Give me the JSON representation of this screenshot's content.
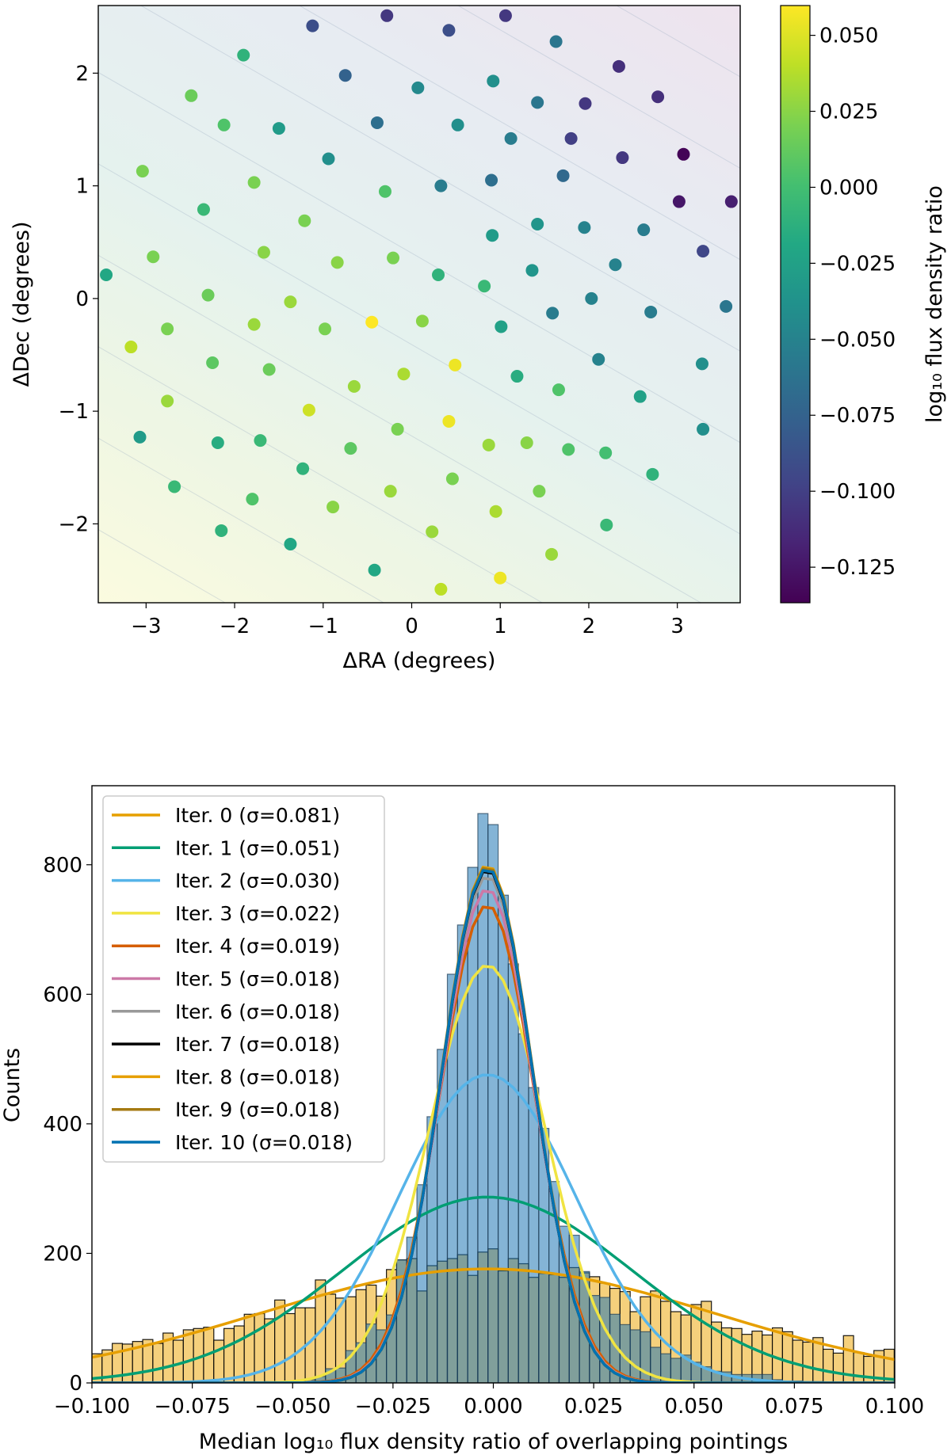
{
  "chart_data": [
    {
      "type": "scatter",
      "xlabel": "ΔRA (degrees)",
      "ylabel": "ΔDec (degrees)",
      "xlim": [
        -3.54,
        3.71
      ],
      "ylim": [
        -2.7,
        2.6
      ],
      "xticks": [
        -3,
        -2,
        -1,
        0,
        1,
        2,
        3
      ],
      "xtick_labels": [
        "−3",
        "−2",
        "−1",
        "0",
        "1",
        "2",
        "3"
      ],
      "yticks": [
        -2,
        -1,
        0,
        1,
        2
      ],
      "ytick_labels": [
        "−2",
        "−1",
        "0",
        "1",
        "2"
      ],
      "background": "planar fit, filled contours",
      "colorbar": {
        "label": "log₁₀ flux density ratio",
        "colormap": "viridis",
        "range": [
          -0.1367,
          0.0598
        ],
        "ticks": [
          0.05,
          0.025,
          0.0,
          -0.025,
          -0.05,
          -0.075,
          -0.1,
          -0.125
        ],
        "tick_labels": [
          "0.050",
          "0.025",
          "0.000",
          "−0.025",
          "−0.050",
          "−0.075",
          "−0.100",
          "−0.125"
        ]
      },
      "points": [
        [
          -1.12,
          2.42,
          -0.09
        ],
        [
          -0.28,
          2.51,
          -0.105
        ],
        [
          1.06,
          2.51,
          -0.105
        ],
        [
          0.42,
          2.38,
          -0.09
        ],
        [
          1.63,
          2.28,
          -0.06
        ],
        [
          2.34,
          2.06,
          -0.11
        ],
        [
          -1.9,
          2.16,
          -0.01
        ],
        [
          -0.75,
          1.98,
          -0.075
        ],
        [
          0.07,
          1.87,
          -0.045
        ],
        [
          0.92,
          1.93,
          -0.04
        ],
        [
          2.78,
          1.79,
          -0.11
        ],
        [
          -2.49,
          1.8,
          0.015
        ],
        [
          1.42,
          1.74,
          -0.06
        ],
        [
          1.96,
          1.73,
          -0.105
        ],
        [
          -2.12,
          1.54,
          0.005
        ],
        [
          -1.5,
          1.51,
          -0.03
        ],
        [
          -0.39,
          1.56,
          -0.065
        ],
        [
          0.52,
          1.54,
          -0.04
        ],
        [
          1.12,
          1.42,
          -0.055
        ],
        [
          1.8,
          1.42,
          -0.1
        ],
        [
          2.38,
          1.25,
          -0.105
        ],
        [
          3.07,
          1.28,
          -0.135
        ],
        [
          -0.94,
          1.24,
          -0.04
        ],
        [
          -3.04,
          1.13,
          0.02
        ],
        [
          -1.78,
          1.03,
          0.02
        ],
        [
          -0.3,
          0.95,
          0.005
        ],
        [
          0.33,
          1.0,
          -0.055
        ],
        [
          0.9,
          1.05,
          -0.065
        ],
        [
          1.71,
          1.09,
          -0.07
        ],
        [
          3.02,
          0.86,
          -0.125
        ],
        [
          3.61,
          0.86,
          -0.12
        ],
        [
          -2.35,
          0.79,
          -0.005
        ],
        [
          -1.21,
          0.69,
          0.02
        ],
        [
          0.91,
          0.56,
          -0.03
        ],
        [
          1.42,
          0.66,
          -0.035
        ],
        [
          1.95,
          0.63,
          -0.05
        ],
        [
          2.62,
          0.61,
          -0.055
        ],
        [
          -2.92,
          0.37,
          0.02
        ],
        [
          -1.67,
          0.41,
          0.025
        ],
        [
          -0.84,
          0.32,
          0.025
        ],
        [
          -0.21,
          0.36,
          0.02
        ],
        [
          3.29,
          0.42,
          -0.095
        ],
        [
          -3.45,
          0.21,
          -0.02
        ],
        [
          0.3,
          0.21,
          -0.01
        ],
        [
          0.82,
          0.11,
          -0.005
        ],
        [
          1.36,
          0.25,
          -0.035
        ],
        [
          2.3,
          0.3,
          -0.05
        ],
        [
          -2.3,
          0.03,
          0.015
        ],
        [
          -1.37,
          -0.03,
          0.03
        ],
        [
          2.03,
          0.0,
          -0.05
        ],
        [
          3.55,
          -0.07,
          -0.06
        ],
        [
          -0.45,
          -0.21,
          0.06
        ],
        [
          0.12,
          -0.2,
          0.025
        ],
        [
          1.59,
          -0.13,
          -0.055
        ],
        [
          2.7,
          -0.12,
          -0.055
        ],
        [
          -2.76,
          -0.27,
          0.02
        ],
        [
          -1.78,
          -0.23,
          0.03
        ],
        [
          -0.98,
          -0.27,
          0.02
        ],
        [
          1.01,
          -0.25,
          -0.025
        ],
        [
          -3.17,
          -0.43,
          0.04
        ],
        [
          -2.25,
          -0.57,
          0.01
        ],
        [
          -1.61,
          -0.63,
          0.015
        ],
        [
          0.49,
          -0.59,
          0.055
        ],
        [
          -0.09,
          -0.67,
          0.035
        ],
        [
          1.19,
          -0.69,
          -0.015
        ],
        [
          2.11,
          -0.54,
          -0.05
        ],
        [
          3.28,
          -0.58,
          -0.04
        ],
        [
          -0.65,
          -0.78,
          0.03
        ],
        [
          1.66,
          -0.81,
          0.005
        ],
        [
          2.58,
          -0.87,
          -0.025
        ],
        [
          -2.76,
          -0.91,
          0.03
        ],
        [
          -1.16,
          -0.99,
          0.045
        ],
        [
          0.42,
          -1.09,
          0.055
        ],
        [
          -0.16,
          -1.16,
          0.02
        ],
        [
          3.29,
          -1.16,
          -0.04
        ],
        [
          -3.07,
          -1.23,
          -0.03
        ],
        [
          -2.19,
          -1.28,
          -0.015
        ],
        [
          -1.71,
          -1.26,
          -0.005
        ],
        [
          -0.69,
          -1.33,
          0.01
        ],
        [
          0.87,
          -1.3,
          0.03
        ],
        [
          1.3,
          -1.28,
          0.025
        ],
        [
          1.77,
          -1.34,
          0.005
        ],
        [
          2.19,
          -1.37,
          0.0
        ],
        [
          -1.23,
          -1.51,
          -0.01
        ],
        [
          0.46,
          -1.6,
          0.02
        ],
        [
          2.72,
          -1.56,
          -0.01
        ],
        [
          -2.68,
          -1.67,
          -0.005
        ],
        [
          -1.8,
          -1.78,
          0.005
        ],
        [
          -0.24,
          -1.71,
          0.03
        ],
        [
          -0.89,
          -1.85,
          0.025
        ],
        [
          1.44,
          -1.71,
          0.02
        ],
        [
          0.95,
          -1.89,
          0.035
        ],
        [
          -2.15,
          -2.06,
          -0.01
        ],
        [
          0.23,
          -2.07,
          0.03
        ],
        [
          2.2,
          -2.01,
          -0.005
        ],
        [
          -1.37,
          -2.18,
          -0.02
        ],
        [
          1.58,
          -2.27,
          0.03
        ],
        [
          -0.42,
          -2.41,
          -0.02
        ],
        [
          1.0,
          -2.48,
          0.055
        ],
        [
          0.33,
          -2.58,
          0.04
        ]
      ]
    },
    {
      "type": "histogram",
      "xlabel": "Median log₁₀ flux density ratio of overlapping pointings",
      "ylabel": "Counts",
      "xlim": [
        -0.1,
        0.1
      ],
      "ylim": [
        0,
        922
      ],
      "xticks": [
        -0.1,
        -0.075,
        -0.05,
        -0.025,
        0,
        0.025,
        0.05,
        0.075,
        0.1
      ],
      "xtick_labels": [
        "−0.100",
        "−0.075",
        "−0.050",
        "−0.025",
        "0.000",
        "0.025",
        "0.050",
        "0.075",
        "0.100"
      ],
      "yticks": [
        0,
        200,
        400,
        600,
        800
      ],
      "ytick_labels": [
        "0",
        "200",
        "400",
        "600",
        "800"
      ],
      "bin_start": -0.1,
      "bin_width": 0.00253,
      "histograms": [
        {
          "color": "#f5d07c",
          "counts": [
            45,
            51,
            61,
            60,
            64,
            67,
            61,
            77,
            66,
            82,
            84,
            86,
            66,
            84,
            88,
            106,
            107,
            99,
            128,
            107,
            116,
            116,
            159,
            137,
            131,
            133,
            144,
            151,
            134,
            175,
            190,
            192,
            142,
            181,
            188,
            192,
            198,
            166,
            202,
            207,
            173,
            192,
            184,
            163,
            169,
            167,
            163,
            178,
            170,
            164,
            154,
            146,
            141,
            110,
            133,
            142,
            126,
            110,
            105,
            121,
            126,
            94,
            85,
            84,
            75,
            80,
            74,
            85,
            79,
            66,
            63,
            70,
            52,
            46,
            73,
            47,
            41,
            50,
            52
          ]
        },
        {
          "color": "#1f77b4",
          "counts": [
            0,
            0,
            0,
            0,
            0,
            0,
            0,
            0,
            0,
            0,
            0,
            0,
            0,
            0,
            0,
            1,
            1,
            2,
            2,
            3,
            3,
            5,
            10,
            22,
            23,
            50,
            62,
            91,
            82,
            105,
            190,
            225,
            306,
            411,
            515,
            631,
            707,
            796,
            879,
            862,
            753,
            647,
            539,
            456,
            393,
            311,
            242,
            228,
            172,
            135,
            132,
            106,
            90,
            82,
            79,
            55,
            45,
            38,
            43,
            32,
            25,
            18,
            17,
            13,
            13,
            13,
            13,
            5,
            3,
            3,
            2,
            2,
            1,
            1,
            1,
            1,
            0,
            0,
            0
          ]
        }
      ],
      "legend_position": "upper-left",
      "series": [
        {
          "name": "Iter. 0 (σ=0.081)",
          "color": "#e69f00",
          "peak": 176,
          "center": -0.0015,
          "width": 0.057
        },
        {
          "name": "Iter. 1 (σ=0.051)",
          "color": "#009e73",
          "peak": 287,
          "center": -0.0015,
          "width": 0.036
        },
        {
          "name": "Iter. 2 (σ=0.030)",
          "color": "#56b4e9",
          "peak": 476,
          "center": -0.0015,
          "width": 0.022
        },
        {
          "name": "Iter. 3 (σ=0.022)",
          "color": "#f0e442",
          "peak": 645,
          "center": -0.0015,
          "width": 0.0145
        },
        {
          "name": "Iter. 4 (σ=0.019)",
          "color": "#d55e00",
          "peak": 738,
          "center": -0.0015,
          "width": 0.0118
        },
        {
          "name": "Iter. 5 (σ=0.018)",
          "color": "#cc79a7",
          "peak": 763,
          "center": -0.0015,
          "width": 0.0115
        },
        {
          "name": "Iter. 6 (σ=0.018)",
          "color": "#999999",
          "peak": 783,
          "center": -0.0015,
          "width": 0.0114
        },
        {
          "name": "Iter. 7 (σ=0.018)",
          "color": "#000000",
          "peak": 793,
          "center": -0.0015,
          "width": 0.0113
        },
        {
          "name": "Iter. 8 (σ=0.018)",
          "color": "#e69f00",
          "peak": 800,
          "center": -0.0015,
          "width": 0.0113
        },
        {
          "name": "Iter. 9 (σ=0.018)",
          "color": "#a57a12",
          "peak": 798,
          "center": -0.0015,
          "width": 0.0113
        },
        {
          "name": "Iter. 10 (σ=0.018)",
          "color": "#0072b2",
          "peak": 795,
          "center": -0.0015,
          "width": 0.0113
        }
      ]
    }
  ]
}
